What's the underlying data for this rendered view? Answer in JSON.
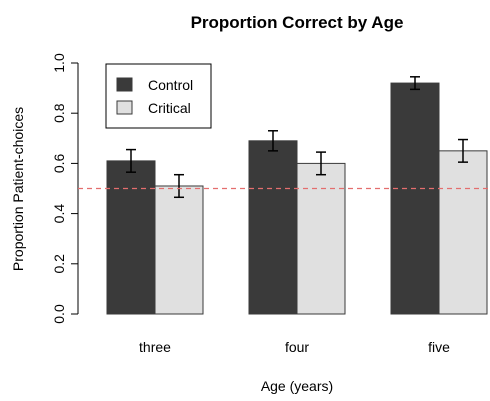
{
  "chart_data": {
    "type": "bar",
    "title": "Proportion Correct by Age",
    "xlabel": "Age (years)",
    "ylabel": "Proportion Patient-choices",
    "categories": [
      "three",
      "four",
      "five"
    ],
    "series": [
      {
        "name": "Control",
        "color": "#3a3a3a",
        "values": [
          0.61,
          0.69,
          0.92
        ],
        "error": [
          0.045,
          0.04,
          0.025
        ]
      },
      {
        "name": "Critical",
        "color": "#e0e0e0",
        "values": [
          0.51,
          0.6,
          0.65
        ],
        "error": [
          0.045,
          0.045,
          0.045
        ]
      }
    ],
    "ylim": [
      0,
      1
    ],
    "yticks": [
      "0.0",
      "0.2",
      "0.4",
      "0.6",
      "0.8",
      "1.0"
    ],
    "reference_line": {
      "value": 0.5,
      "color": "#e46e6e",
      "style": "dashed"
    },
    "legend": {
      "position": "top-left",
      "entries": [
        "Control",
        "Critical"
      ]
    },
    "grid": false
  }
}
